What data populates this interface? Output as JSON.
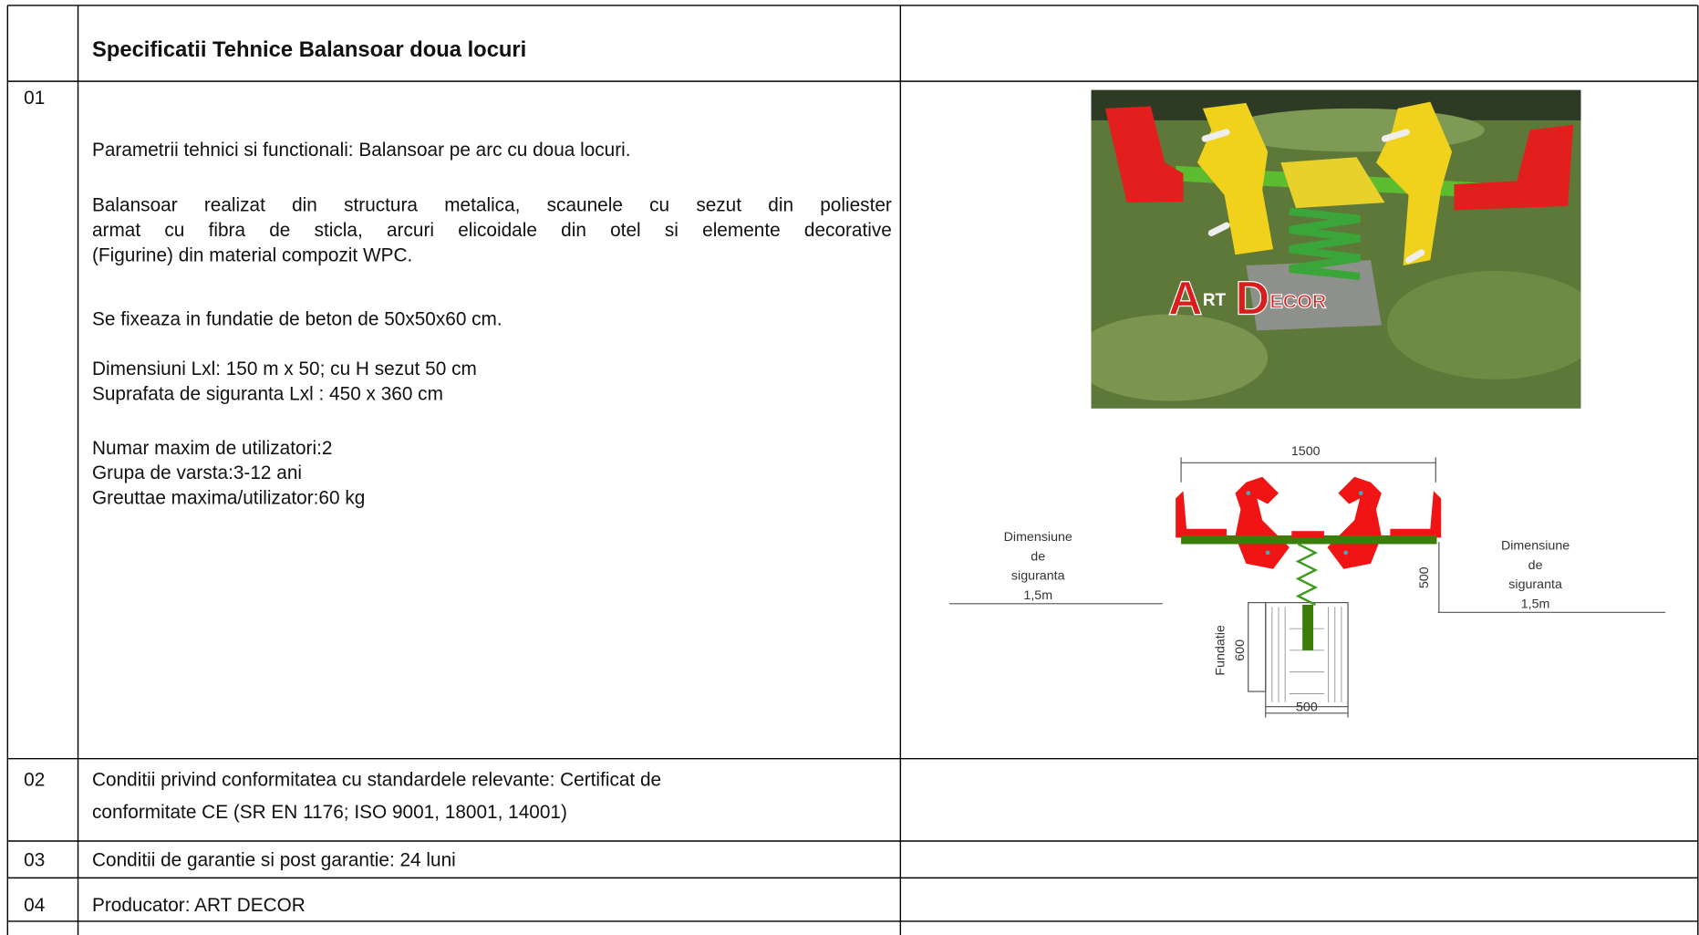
{
  "header": {
    "title_prefix": "Specificatii Tehnice",
    "title_main": "Balansoar doua locuri"
  },
  "rows": [
    {
      "number": "01",
      "paragraphs": [
        [
          "Parametrii tehnici si functionali: Balansoar pe arc cu doua locuri."
        ],
        [
          "Balansoar realizat din structura metalica, scaunele cu sezut din poliester",
          "armat cu fibra de sticla, arcuri elicoidale din otel si elemente decorative",
          "(Figurine) din material compozit WPC."
        ],
        [
          "Se fixeaza in fundatie de beton de 50x50x60 cm."
        ],
        [
          "Dimensiuni Lxl: 150 m x 50; cu H sezut 50 cm",
          "Suprafata de siguranta Lxl : 450 x 360 cm"
        ],
        [
          "Numar maxim de utilizatori:2",
          "Grupa de varsta:3-12 ani",
          "Greuttae maxima/utilizator:60 kg"
        ]
      ]
    },
    {
      "number": "02",
      "lines": [
        "Conditii privind conformitatea cu standardele relevante: Certificat de",
        "conformitate CE (SR EN 1176; ISO 9001, 18001, 14001)"
      ]
    },
    {
      "number": "03",
      "lines": [
        "Conditii de garantie si post garantie: 24 luni"
      ]
    },
    {
      "number": "04",
      "lines": [
        "Producator: ART DECOR"
      ]
    }
  ],
  "photo": {
    "logo": [
      "A",
      "RT",
      "D",
      "ECOR"
    ]
  },
  "drawing": {
    "width_label": "1500",
    "left_zone": [
      "Dimensiune",
      "de",
      "siguranta",
      "1,5m"
    ],
    "right_zone": [
      "Dimensiune",
      "de",
      "siguranta",
      "1,5m"
    ],
    "height_label": "500",
    "foundation_label": "Fundatie",
    "foundation_depth": "600",
    "foundation_width": "500"
  }
}
